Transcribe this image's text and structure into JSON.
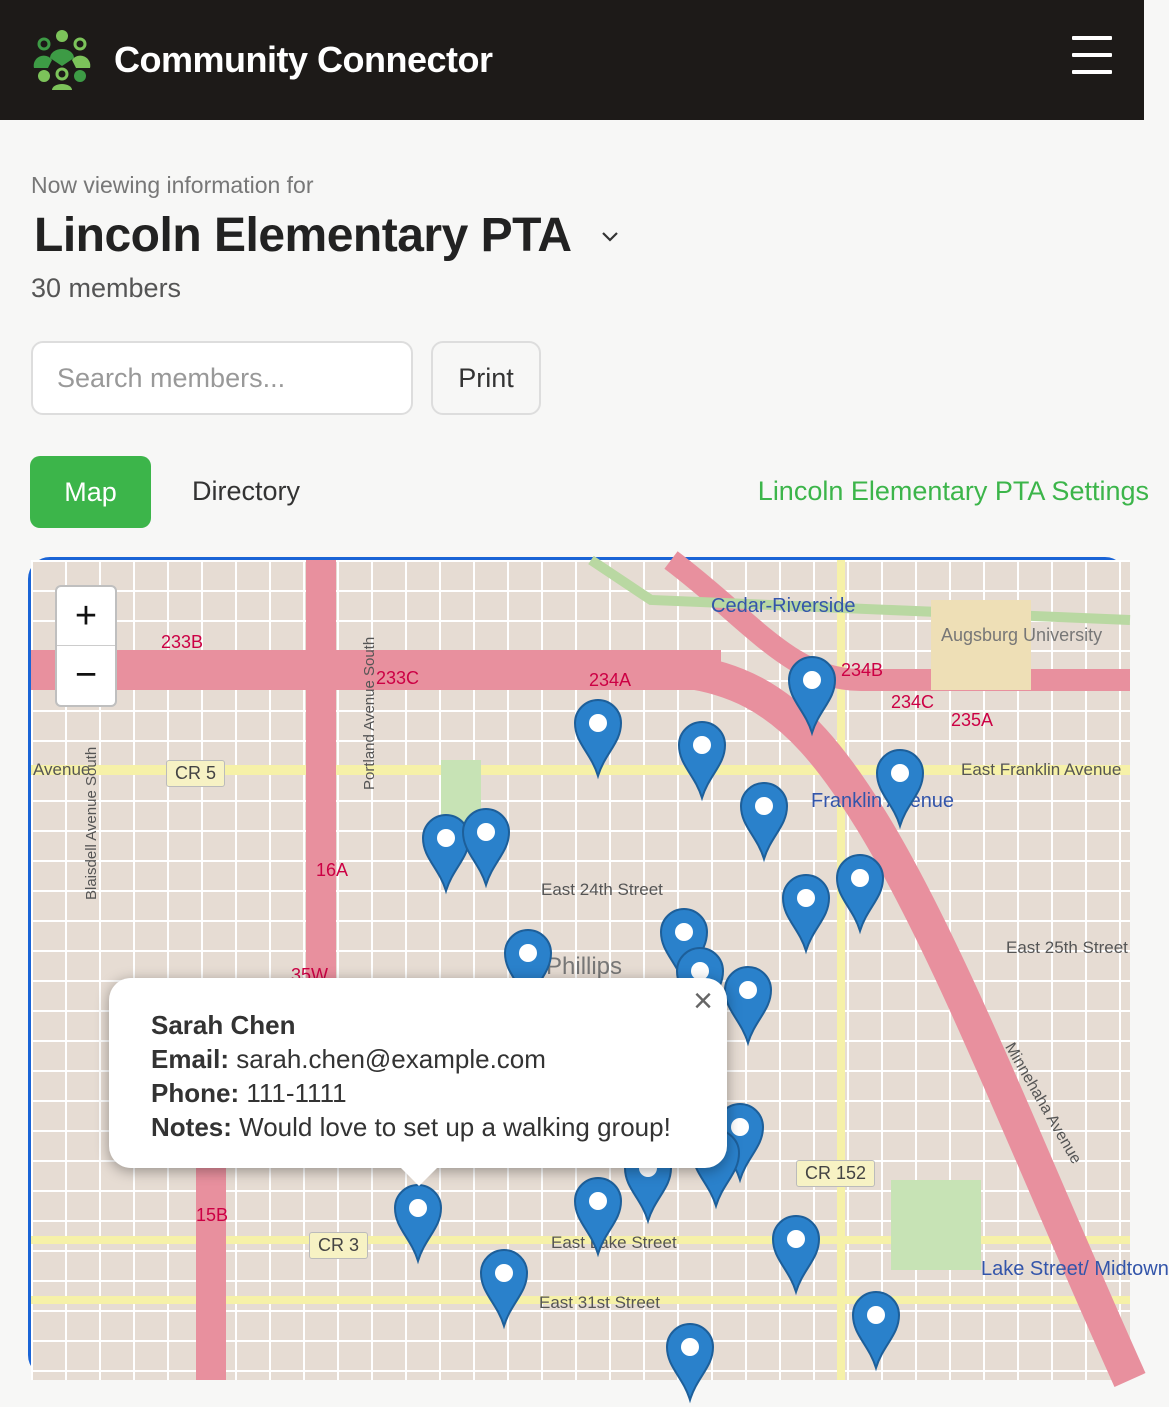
{
  "header": {
    "brand": "Community Connector",
    "menu_icon": "hamburger-icon",
    "logo_colors": [
      "#3d9b45",
      "#7cc35a"
    ]
  },
  "context": {
    "viewing_label": "Now viewing information for",
    "group_name": "Lincoln Elementary PTA",
    "member_count": "30 members"
  },
  "toolbar": {
    "search_placeholder": "Search members...",
    "search_value": "",
    "print_label": "Print"
  },
  "tabs": [
    {
      "label": "Map",
      "active": true
    },
    {
      "label": "Directory",
      "active": false
    }
  ],
  "settings_link": "Lincoln Elementary PTA Settings",
  "colors": {
    "accent": "#3cb54a",
    "map_border": "#1a64d6",
    "pin": "#2a81cb"
  },
  "map": {
    "zoom_in": "+",
    "zoom_out": "−",
    "labels": [
      "Cedar-Riverside",
      "Augsburg University",
      "Franklin Avenue",
      "East Franklin Avenue",
      "East 24th Street",
      "East 25th Street",
      "Phillips",
      "Minnehaha Avenue",
      "Lake Street/ Midtown",
      "East Lake Street",
      "East 31st Street",
      "Blaisdell Avenue South",
      "Portland Avenue South",
      "233B",
      "233C",
      "234A",
      "234B",
      "234C",
      "235A",
      "16A",
      "15B",
      "35W",
      "Avenue"
    ],
    "shields": [
      "CR 5",
      "CR 152",
      "CR 3"
    ],
    "popup": {
      "name": "Sarah Chen",
      "email_label": "Email:",
      "email": "sarah.chen@example.com",
      "phone_label": "Phone:",
      "phone": "111-1111",
      "notes_label": "Notes:",
      "notes": "Would love to set up a walking group!",
      "close": "×"
    }
  }
}
